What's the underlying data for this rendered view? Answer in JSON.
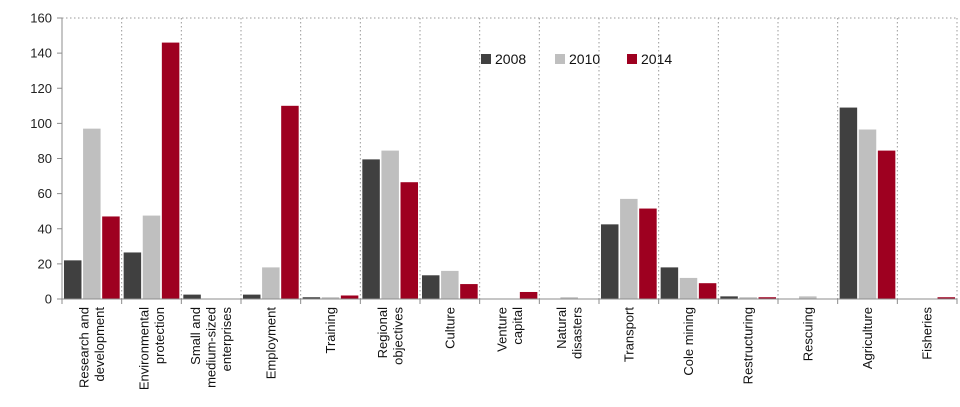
{
  "chart_data": {
    "type": "bar",
    "title": "",
    "xlabel": "",
    "ylabel": "",
    "ylim": [
      0,
      160
    ],
    "yticks": [
      0,
      20,
      40,
      60,
      80,
      100,
      120,
      140,
      160
    ],
    "grid": "dotted vertical separators and top/right border",
    "legend_position": "top-center",
    "categories": [
      [
        "Research and",
        "development"
      ],
      [
        "Environmental",
        "protection"
      ],
      [
        "Small and",
        "medium-sized",
        "enterprises"
      ],
      [
        "Employment"
      ],
      [
        "Training"
      ],
      [
        "Regional",
        "objectives"
      ],
      [
        "Culture"
      ],
      [
        "Venture",
        "capital"
      ],
      [
        "Natural",
        "disasters"
      ],
      [
        "Transport"
      ],
      [
        "Cole mining"
      ],
      [
        "Restructuring"
      ],
      [
        "Rescuing"
      ],
      [
        "Agriculture"
      ],
      [
        "Fisheries"
      ]
    ],
    "series": [
      {
        "name": "2008",
        "color": "#404040",
        "values": [
          22,
          26.5,
          2.5,
          2.5,
          1,
          79.5,
          13.5,
          0,
          0,
          42.5,
          18,
          1.5,
          0,
          109,
          0
        ]
      },
      {
        "name": "2010",
        "color": "#bfbfbf",
        "values": [
          97,
          47.5,
          0,
          18,
          1,
          84.5,
          16,
          0,
          1,
          57,
          12,
          1,
          1.5,
          96.5,
          0
        ]
      },
      {
        "name": "2014",
        "color": "#9e0020",
        "values": [
          47,
          146,
          0,
          110,
          2,
          66.5,
          8.5,
          4,
          0,
          51.5,
          9,
          1,
          0,
          84.5,
          1
        ]
      }
    ]
  }
}
